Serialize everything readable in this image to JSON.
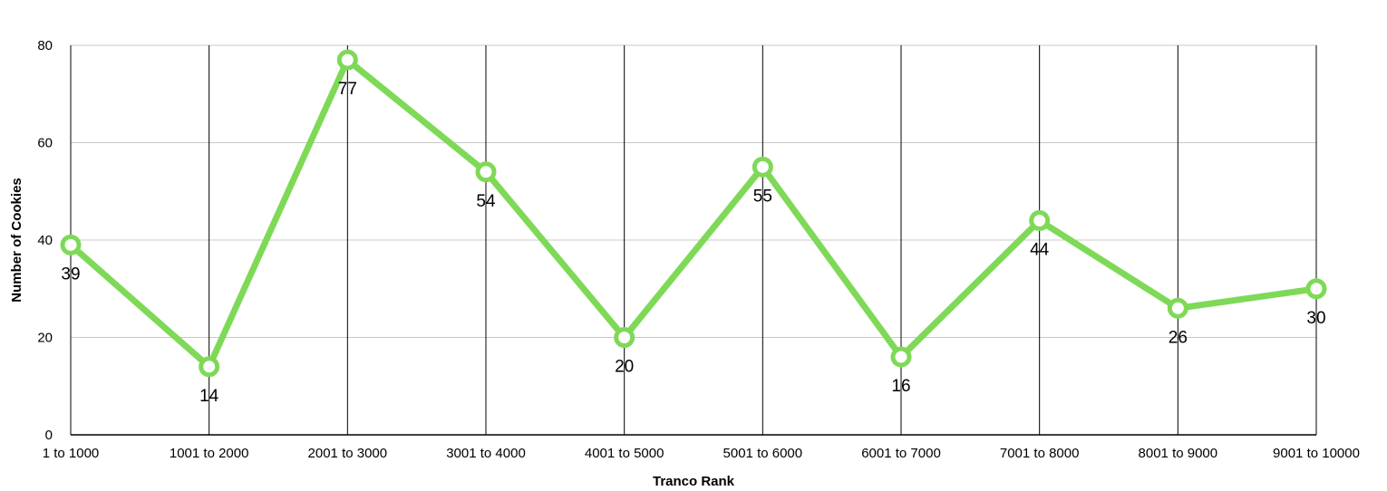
{
  "chart_data": {
    "type": "line",
    "categories": [
      "1 to 1000",
      "1001 to 2000",
      "2001 to 3000",
      "3001 to 4000",
      "4001 to 5000",
      "5001 to 6000",
      "6001 to 7000",
      "7001 to 8000",
      "8001 to 9000",
      "9001 to 10000"
    ],
    "series": [
      {
        "values": [
          39,
          14,
          77,
          54,
          20,
          55,
          16,
          44,
          26,
          30
        ]
      }
    ],
    "xlabel": "Tranco Rank",
    "ylabel": "Number of Cookies",
    "ylim": [
      0,
      80
    ],
    "yticks": [
      0,
      20,
      40,
      60,
      80
    ],
    "grid": true,
    "line_color": "#7ed957"
  }
}
